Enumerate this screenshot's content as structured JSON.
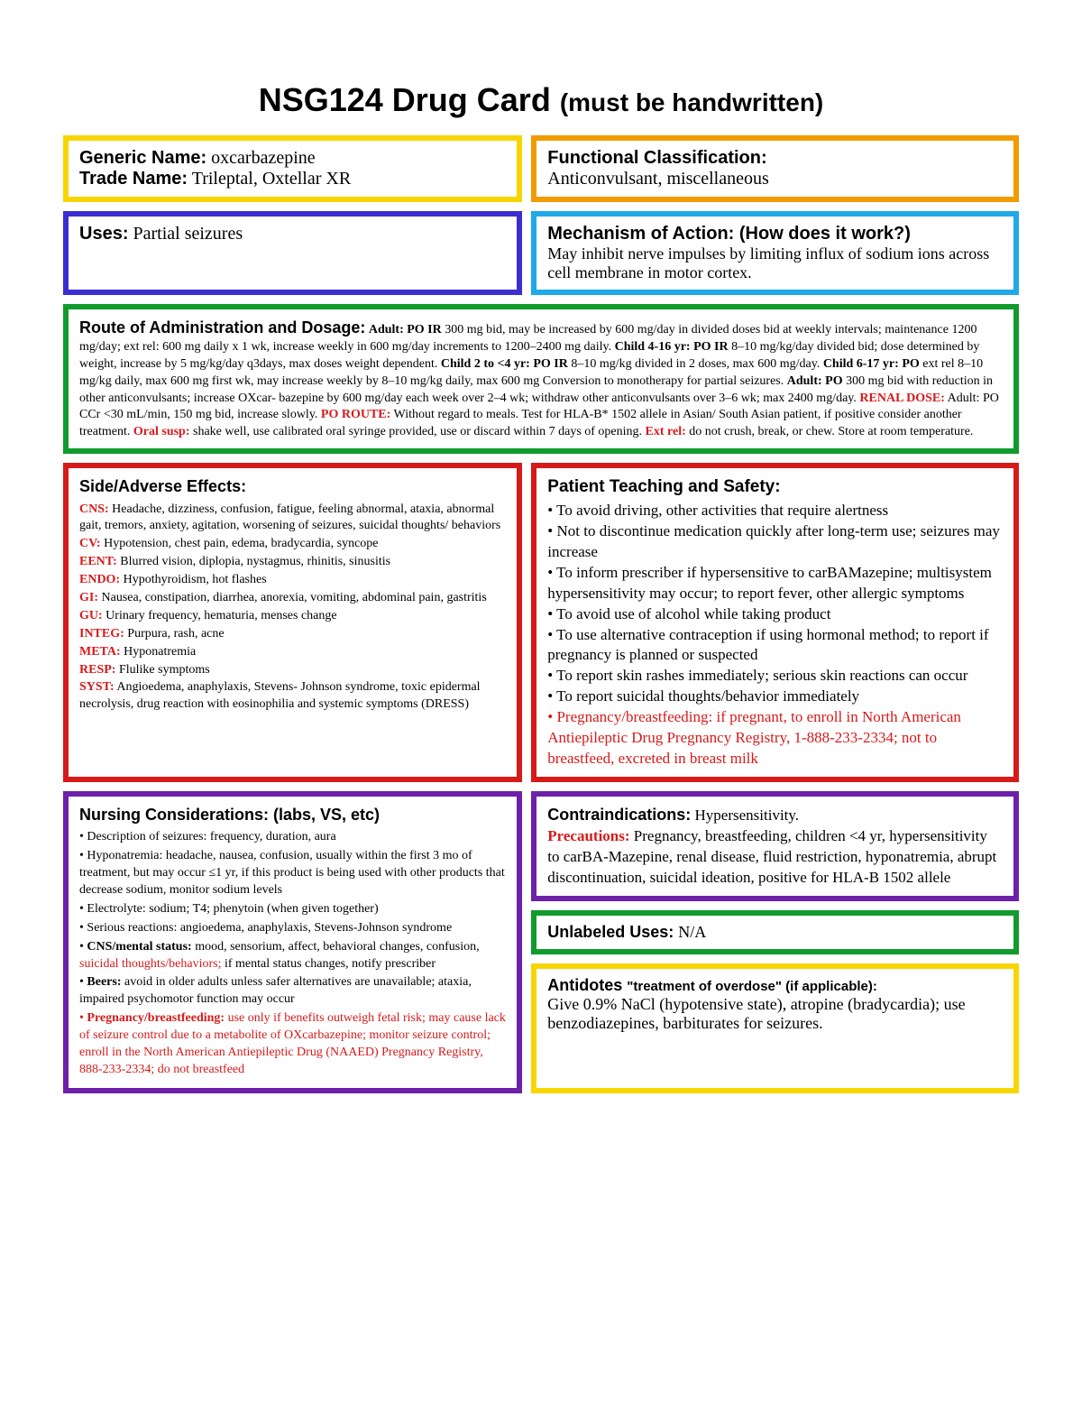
{
  "title_main": "NSG124 Drug Card ",
  "title_sub": "(must be handwritten)",
  "generic_label": "Generic Name:",
  "generic_value": " oxcarbazepine",
  "trade_label": "Trade Name:",
  "trade_value": " Trileptal, Oxtellar XR",
  "func_label": "Functional Classification:",
  "func_value": "Anticonvulsant, miscellaneous",
  "uses_label": "Uses:",
  "uses_value": " Partial seizures",
  "moa_label": "Mechanism of Action: (How does it work?)",
  "moa_value": "May inhibit nerve impulses by limiting influx of sodium ions across cell membrane in motor cortex.",
  "route_label": "Route of Administration and Dosage:",
  "route_segments": [
    {
      "b": " Adult: PO IR ",
      "r": false
    },
    {
      "b": "300 mg bid, may be increased by 600 mg/day in divided doses bid at weekly intervals; maintenance 1200 mg/day; ext rel: 600 mg daily x 1 wk, increase weekly in 600 mg/day increments to 1200–2400 mg daily. ",
      "r": false,
      "plain": true
    },
    {
      "b": "Child 4-16 yr: PO IR ",
      "r": false
    },
    {
      "b": "8–10 mg/kg/day divided bid; dose determined by weight, increase by 5 mg/kg/day q3days, max doses weight dependent. ",
      "r": false,
      "plain": true
    },
    {
      "b": "Child 2 to <4 yr: PO IR ",
      "r": false
    },
    {
      "b": "8–10 mg/kg divided in 2 doses, max 600 mg/day. ",
      "r": false,
      "plain": true
    },
    {
      "b": "Child 6-17 yr: PO ",
      "r": false
    },
    {
      "b": "ext rel 8–10 mg/kg daily, max 600 mg first wk, may increase weekly by 8–10 mg/kg daily, max 600 mg Conversion to monotherapy for partial seizures. ",
      "r": false,
      "plain": true
    },
    {
      "b": "Adult: PO ",
      "r": false
    },
    {
      "b": "300 mg bid with reduction in other anticonvulsants; increase OXcar- bazepine by 600 mg/day each week over 2–4 wk; withdraw other anticonvulsants over 3–6 wk; max 2400 mg/day. ",
      "r": false,
      "plain": true
    },
    {
      "b": "RENAL DOSE:",
      "r": true
    },
    {
      "b": " Adult: PO CCr <30 mL/min, 150 mg bid, increase slowly. ",
      "r": false,
      "plain": true
    },
    {
      "b": "PO ROUTE:",
      "r": true
    },
    {
      "b": " Without regard to meals. Test for HLA-B* 1502 allele in Asian/ South Asian patient, if positive consider another treatment. ",
      "r": false,
      "plain": true
    },
    {
      "b": "Oral susp:",
      "r": true
    },
    {
      "b": " shake well, use calibrated oral syringe provided, use or discard within 7 days of opening. ",
      "r": false,
      "plain": true
    },
    {
      "b": "Ext rel:",
      "r": true
    },
    {
      "b": " do not crush, break, or chew. Store at room temperature.",
      "r": false,
      "plain": true
    }
  ],
  "se_label": "Side/Adverse Effects:",
  "se_items": [
    {
      "cat": "CNS:",
      "txt": " Headache, dizziness, confusion, fatigue, feeling abnormal, ataxia, abnormal gait, tremors, anxiety, agitation, worsening of seizures, suicidal thoughts/ behaviors"
    },
    {
      "cat": "CV:",
      "txt": " Hypotension, chest pain, edema, bradycardia, syncope"
    },
    {
      "cat": "EENT:",
      "txt": " Blurred vision, diplopia, nystagmus, rhinitis, sinusitis"
    },
    {
      "cat": "ENDO:",
      "txt": " Hypothyroidism, hot flashes"
    },
    {
      "cat": "GI:",
      "txt": " Nausea, constipation, diarrhea, anorexia, vomiting, abdominal pain, gastritis"
    },
    {
      "cat": "GU:",
      "txt": " Urinary frequency, hematuria, menses change"
    },
    {
      "cat": "INTEG:",
      "txt": " Purpura, rash, acne"
    },
    {
      "cat": "META:",
      "txt": " Hyponatremia"
    },
    {
      "cat": "RESP:",
      "txt": " Flulike symptoms"
    },
    {
      "cat": "SYST:",
      "txt": " Angioedema, anaphylaxis, Stevens- Johnson syndrome, toxic epidermal necrolysis, drug reaction with eosinophilia and systemic symptoms (DRESS)"
    }
  ],
  "teach_label": "Patient Teaching and Safety:",
  "teach_items": [
    {
      "t": "To avoid driving, other activities that require alertness",
      "r": false
    },
    {
      "t": "Not to discontinue medication quickly after long-term use; seizures may increase",
      "r": false
    },
    {
      "t": "To inform prescriber if hypersensitive to carBAMazepine; multisystem hypersensitivity may occur; to report fever, other allergic symptoms",
      "r": false
    },
    {
      "t": "To avoid use of alcohol while taking product",
      "r": false
    },
    {
      "t": "To use alternative contraception if using hormonal method; to report if pregnancy is planned or suspected",
      "r": false
    },
    {
      "t": "To report skin rashes immediately; serious skin reactions can occur",
      "r": false
    },
    {
      "t": "To report suicidal thoughts/behavior immediately",
      "r": false
    },
    {
      "t": "Pregnancy/breastfeeding: if pregnant, to enroll in North American Antiepileptic Drug Pregnancy Registry, 1-888-233-2334; not to breastfeed, excreted in breast milk",
      "r": true
    }
  ],
  "nurse_label": "Nursing Considerations: (labs, VS, etc)",
  "nurse_items": [
    {
      "pre": "Description of seizures: frequency, duration, aura"
    },
    {
      "pre": "Hyponatremia: headache, nausea, confusion, usually within the first 3 mo of treatment, but may occur ≤1 yr, if this product is being used with other products that decrease sodium, monitor sodium levels"
    },
    {
      "pre": "Electrolyte: sodium; T4; phenytoin (when given together)"
    },
    {
      "pre": "Serious reactions: angioedema, anaphylaxis, Stevens-Johnson syndrome"
    },
    {
      "bold": "CNS/mental status:",
      "pre": " mood, sensorium, affect, behavioral changes, confusion, ",
      "red": "suicidal thoughts/behaviors;",
      "post": " if mental status changes, notify prescriber"
    },
    {
      "bold": "Beers:",
      "pre": " avoid in older adults unless safer alternatives are unavailable; ataxia, impaired psychomotor function may occur"
    },
    {
      "allred": true,
      "bold": "Pregnancy/breastfeeding:",
      "pre": " use only if benefits outweigh fetal risk; may cause lack of seizure control due to a metabolite of OXcarbazepine; monitor seizure control; enroll in the North American Antiepileptic Drug (NAAED) Pregnancy Registry, 888-233-2334; do not breastfeed"
    }
  ],
  "contra_label": "Contraindications:",
  "contra_value": " Hypersensitivity.",
  "precautions_label": "Precautions:",
  "precautions_value": " Pregnancy, breastfeeding, children <4 yr, hypersensitivity to carBA-Mazepine, renal disease, fluid restriction, hyponatremia, abrupt discontinuation, suicidal ideation, positive for HLA-B 1502 allele",
  "unlabeled_label": "Unlabeled Uses: ",
  "unlabeled_value": "N/A",
  "antidote_label": "Antidotes ",
  "antidote_quote": "\"treatment of overdose\" (if applicable):",
  "antidote_value": "Give 0.9% NaCl (hypotensive state), atropine (bradycardia); use benzodiazepines, barbiturates for seizures."
}
